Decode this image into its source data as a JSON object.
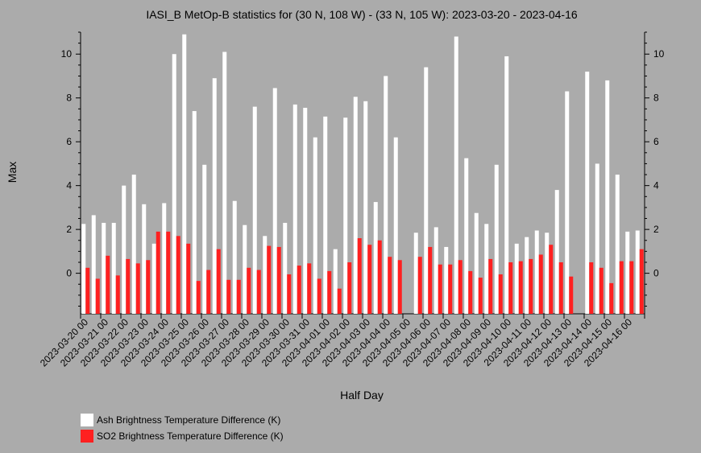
{
  "chart_data": {
    "type": "bar",
    "title": "IASI_B MetOp-B statistics for (30 N, 108 W) - (33 N, 105 W): 2023-03-20 - 2023-04-16",
    "xlabel": "Half Day",
    "ylabel": "Max",
    "ylim": [
      -1.85,
      11.0
    ],
    "yticks": [
      0,
      2,
      4,
      6,
      8,
      10
    ],
    "xtick_labels": [
      "2023-03-20 00",
      "2023-03-21 00",
      "2023-03-22 00",
      "2023-03-23 00",
      "2023-03-24 00",
      "2023-03-25 00",
      "2023-03-26 00",
      "2023-03-27 00",
      "2023-03-28 00",
      "2023-03-29 00",
      "2023-03-30 00",
      "2023-03-31 00",
      "2023-04-01 00",
      "2023-04-02 00",
      "2023-04-03 00",
      "2023-04-04 00",
      "2023-04-05 00",
      "2023-04-06 00",
      "2023-04-07 00",
      "2023-04-08 00",
      "2023-04-09 00",
      "2023-04-10 00",
      "2023-04-11 00",
      "2023-04-12 00",
      "2023-04-13 00",
      "2023-04-14 00",
      "2023-04-15 00",
      "2023-04-16 00"
    ],
    "series": [
      {
        "name": "Ash Brightness Temperature Difference (K)",
        "color": "#ffffff",
        "values": [
          2.25,
          2.65,
          2.3,
          2.3,
          4.0,
          4.5,
          3.15,
          1.35,
          3.2,
          10.0,
          10.9,
          7.4,
          4.95,
          8.9,
          10.1,
          3.3,
          2.2,
          7.6,
          1.7,
          8.45,
          2.3,
          7.7,
          7.55,
          6.2,
          7.15,
          1.1,
          7.1,
          8.05,
          7.85,
          3.25,
          9.0,
          6.2,
          null,
          1.85,
          9.4,
          2.1,
          1.2,
          10.8,
          5.25,
          2.75,
          2.25,
          4.95,
          9.9,
          1.35,
          1.65,
          1.95,
          1.85,
          3.8,
          8.3,
          null,
          9.2,
          5.0,
          8.8,
          4.5,
          1.9,
          1.95
        ]
      },
      {
        "name": "SO2 Brightness Temperature Difference (K)",
        "color": "#ff2020",
        "values": [
          0.25,
          -0.25,
          0.8,
          -0.1,
          0.65,
          0.45,
          0.6,
          1.9,
          1.9,
          1.7,
          1.35,
          -0.35,
          0.15,
          1.1,
          -0.3,
          -0.3,
          0.25,
          0.15,
          1.25,
          1.2,
          -0.05,
          0.35,
          0.45,
          -0.25,
          0.1,
          -0.7,
          0.5,
          1.6,
          1.3,
          1.5,
          0.75,
          0.6,
          null,
          0.75,
          1.2,
          0.4,
          0.4,
          0.6,
          0.1,
          -0.2,
          0.65,
          -0.05,
          0.5,
          0.55,
          0.65,
          0.85,
          1.3,
          0.5,
          -0.15,
          null,
          0.5,
          0.25,
          -0.45,
          0.55,
          0.55,
          1.1
        ]
      }
    ],
    "legend_position": "bottom-left"
  }
}
